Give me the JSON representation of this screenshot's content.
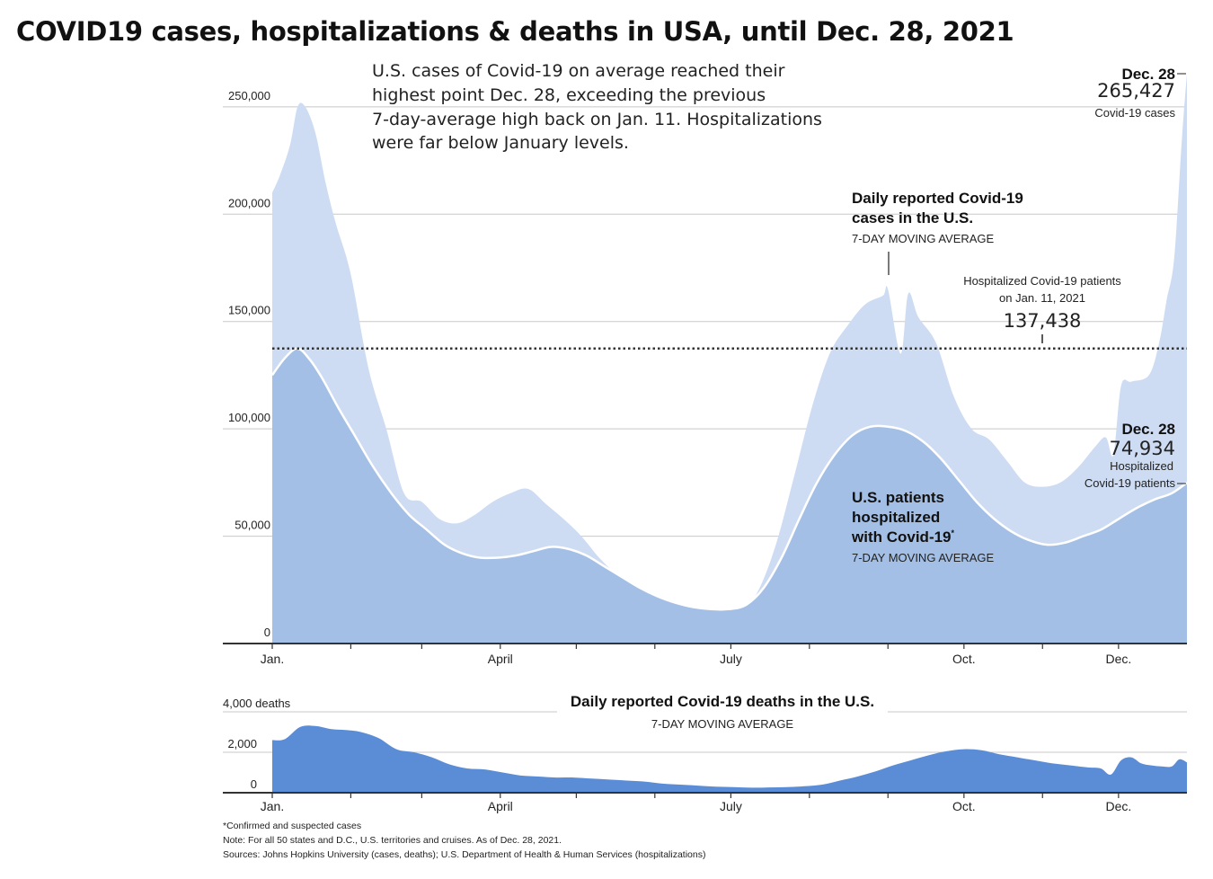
{
  "page_title": "COVID19 cases, hospitalizations & deaths in USA, until Dec. 28, 2021",
  "intro_text": [
    "U.S. cases of Covid-19 on average reached their",
    "highest point Dec. 28, exceeding the previous",
    "7-day-average high back on Jan. 11. Hospitalizations",
    "were far below January levels."
  ],
  "colors": {
    "cases_fill": "#cddcf2",
    "hosp_fill": "#a3bfe5",
    "hosp_line": "#ffffff",
    "deaths_fill": "#5a8dd6",
    "gridline": "#c8c8c8",
    "axis": "#333333"
  },
  "chart_data": [
    {
      "type": "area",
      "title": "",
      "x_ticks": [
        "Jan.",
        "April",
        "July",
        "Oct.",
        "Dec."
      ],
      "y_ticks": [
        "250,000",
        "200,000",
        "150,000",
        "100,000",
        "50,000",
        "0"
      ],
      "ylim": [
        0,
        265427
      ],
      "grid": true,
      "series": [
        {
          "name": "Daily reported Covid-19 cases in the U.S.",
          "subtitle": "7-DAY MOVING AVERAGE",
          "x": [
            "2021-01-01",
            "2021-01-04",
            "2021-01-08",
            "2021-01-11",
            "2021-01-14",
            "2021-01-18",
            "2021-01-22",
            "2021-01-26",
            "2021-02-01",
            "2021-02-08",
            "2021-02-15",
            "2021-02-22",
            "2021-03-01",
            "2021-03-08",
            "2021-03-15",
            "2021-03-22",
            "2021-03-29",
            "2021-04-05",
            "2021-04-12",
            "2021-04-19",
            "2021-04-26",
            "2021-05-03",
            "2021-05-10",
            "2021-05-17",
            "2021-05-24",
            "2021-05-31",
            "2021-06-07",
            "2021-06-14",
            "2021-06-21",
            "2021-06-28",
            "2021-07-05",
            "2021-07-12",
            "2021-07-19",
            "2021-07-26",
            "2021-08-02",
            "2021-08-09",
            "2021-08-16",
            "2021-08-23",
            "2021-08-30",
            "2021-09-01",
            "2021-09-06",
            "2021-09-09",
            "2021-09-13",
            "2021-09-20",
            "2021-09-27",
            "2021-10-04",
            "2021-10-11",
            "2021-10-18",
            "2021-10-25",
            "2021-11-01",
            "2021-11-08",
            "2021-11-15",
            "2021-11-22",
            "2021-11-26",
            "2021-11-29",
            "2021-12-02",
            "2021-12-06",
            "2021-12-13",
            "2021-12-17",
            "2021-12-20",
            "2021-12-23",
            "2021-12-26",
            "2021-12-28"
          ],
          "y": [
            210000,
            218000,
            232000,
            250000,
            250000,
            238000,
            215000,
            196000,
            172000,
            128000,
            100000,
            70000,
            66000,
            58000,
            56000,
            60000,
            66000,
            70000,
            72000,
            65000,
            58000,
            50000,
            40000,
            32000,
            25000,
            20000,
            15000,
            12500,
            11500,
            12000,
            14000,
            25000,
            47000,
            78000,
            110000,
            135000,
            148000,
            158000,
            162000,
            165000,
            135000,
            163000,
            152000,
            140000,
            115000,
            100000,
            95000,
            85000,
            75000,
            73000,
            75000,
            82000,
            92000,
            96000,
            88000,
            120000,
            122000,
            125000,
            140000,
            160000,
            180000,
            235000,
            265427
          ]
        },
        {
          "name": "U.S. patients hospitalized with Covid-19*",
          "subtitle": "7-DAY MOVING AVERAGE",
          "x": [
            "2021-01-01",
            "2021-01-06",
            "2021-01-11",
            "2021-01-16",
            "2021-01-21",
            "2021-01-27",
            "2021-02-03",
            "2021-02-10",
            "2021-02-17",
            "2021-02-24",
            "2021-03-03",
            "2021-03-10",
            "2021-03-17",
            "2021-03-24",
            "2021-03-31",
            "2021-04-07",
            "2021-04-14",
            "2021-04-21",
            "2021-04-28",
            "2021-05-05",
            "2021-05-12",
            "2021-05-19",
            "2021-05-26",
            "2021-06-02",
            "2021-06-09",
            "2021-06-16",
            "2021-06-23",
            "2021-06-30",
            "2021-07-07",
            "2021-07-14",
            "2021-07-21",
            "2021-07-28",
            "2021-08-04",
            "2021-08-11",
            "2021-08-18",
            "2021-08-25",
            "2021-09-01",
            "2021-09-08",
            "2021-09-15",
            "2021-09-22",
            "2021-09-29",
            "2021-10-06",
            "2021-10-13",
            "2021-10-20",
            "2021-10-27",
            "2021-11-03",
            "2021-11-10",
            "2021-11-17",
            "2021-11-24",
            "2021-12-01",
            "2021-12-08",
            "2021-12-15",
            "2021-12-22",
            "2021-12-28"
          ],
          "y": [
            125000,
            133000,
            137438,
            132000,
            123000,
            110000,
            96000,
            82000,
            70000,
            60000,
            53000,
            46000,
            42000,
            40000,
            40000,
            41000,
            43000,
            45000,
            44000,
            41000,
            36000,
            31000,
            26000,
            22000,
            19000,
            17000,
            16000,
            16000,
            18000,
            26000,
            40000,
            58000,
            75000,
            88000,
            97000,
            101000,
            101000,
            99000,
            94000,
            86000,
            76000,
            66000,
            58000,
            52000,
            48000,
            46000,
            47000,
            50000,
            53000,
            58000,
            63000,
            67000,
            70000,
            74934
          ]
        }
      ],
      "reference_line": {
        "value": 137438,
        "label_lines": [
          "Hospitalized Covid-19 patients",
          "on Jan. 11, 2021"
        ],
        "value_label": "137,438"
      },
      "annotations": {
        "cases_end": {
          "date": "Dec. 28",
          "value": "265,427",
          "label": "Covid-19 cases"
        },
        "hosp_end": {
          "date": "Dec. 28",
          "value": "74,934",
          "label_lines": [
            "Hospitalized",
            "Covid-19 patients"
          ]
        },
        "cases_label_lines": [
          "Daily reported Covid-19",
          "cases in the U.S."
        ],
        "cases_sub": "7-DAY MOVING AVERAGE",
        "hosp_label_lines": [
          "U.S. patients",
          "hospitalized",
          "with Covid-19"
        ],
        "hosp_label_mark": "*",
        "hosp_sub": "7-DAY MOVING AVERAGE"
      }
    },
    {
      "type": "area",
      "title": "Daily reported Covid-19 deaths in the U.S.",
      "subtitle": "7-DAY MOVING AVERAGE",
      "x_ticks": [
        "Jan.",
        "April",
        "July",
        "Oct.",
        "Dec."
      ],
      "y_ticks": [
        "4,000 deaths",
        "2,000",
        "0"
      ],
      "ylim": [
        0,
        4000
      ],
      "grid": true,
      "series": [
        {
          "name": "Daily reported Covid-19 deaths",
          "x": [
            "2021-01-01",
            "2021-01-06",
            "2021-01-12",
            "2021-01-18",
            "2021-01-24",
            "2021-01-30",
            "2021-02-05",
            "2021-02-12",
            "2021-02-19",
            "2021-02-26",
            "2021-03-05",
            "2021-03-12",
            "2021-03-19",
            "2021-03-26",
            "2021-04-02",
            "2021-04-09",
            "2021-04-16",
            "2021-04-23",
            "2021-04-30",
            "2021-05-07",
            "2021-05-14",
            "2021-05-21",
            "2021-05-28",
            "2021-06-04",
            "2021-06-11",
            "2021-06-18",
            "2021-06-25",
            "2021-07-02",
            "2021-07-09",
            "2021-07-16",
            "2021-07-23",
            "2021-07-30",
            "2021-08-06",
            "2021-08-13",
            "2021-08-20",
            "2021-08-27",
            "2021-09-03",
            "2021-09-10",
            "2021-09-17",
            "2021-09-24",
            "2021-10-01",
            "2021-10-08",
            "2021-10-15",
            "2021-10-22",
            "2021-10-29",
            "2021-11-05",
            "2021-11-12",
            "2021-11-19",
            "2021-11-24",
            "2021-11-28",
            "2021-12-02",
            "2021-12-06",
            "2021-12-10",
            "2021-12-14",
            "2021-12-18",
            "2021-12-22",
            "2021-12-25",
            "2021-12-28"
          ],
          "y": [
            2600,
            2650,
            3250,
            3300,
            3150,
            3100,
            3000,
            2700,
            2150,
            2000,
            1750,
            1400,
            1200,
            1150,
            1000,
            850,
            800,
            750,
            750,
            700,
            650,
            600,
            550,
            450,
            400,
            350,
            300,
            280,
            250,
            260,
            280,
            320,
            400,
            600,
            800,
            1050,
            1350,
            1600,
            1850,
            2050,
            2150,
            2100,
            1900,
            1750,
            1600,
            1450,
            1350,
            1250,
            1200,
            900,
            1600,
            1750,
            1450,
            1350,
            1300,
            1300,
            1650,
            1500
          ]
        }
      ]
    }
  ],
  "footnotes": [
    "*Confirmed and suspected cases",
    "Note: For all 50 states and D.C., U.S. territories and cruises. As of Dec. 28, 2021.",
    "Sources: Johns Hopkins University (cases, deaths); U.S. Department of Health & Human Services (hospitalizations)"
  ]
}
